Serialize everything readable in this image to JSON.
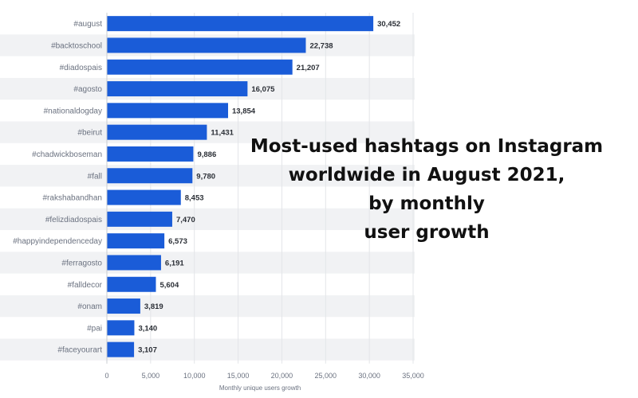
{
  "overlay_title": "Most-used hashtags on Instagram\nworldwide in August 2021,\nby monthly\nuser growth",
  "colors": {
    "bar": "#1a5cd8",
    "stripe": "#f1f2f4",
    "grid": "#e3e5e8"
  },
  "chart_data": {
    "type": "bar",
    "orientation": "horizontal",
    "categories": [
      "#august",
      "#backtoschool",
      "#diadospais",
      "#agosto",
      "#nationaldogday",
      "#beirut",
      "#chadwickboseman",
      "#fall",
      "#rakshabandhan",
      "#felizdiadospais",
      "#happyindependenceday",
      "#ferragosto",
      "#falldecor",
      "#onam",
      "#pai",
      "#faceyourart"
    ],
    "values": [
      30452,
      22738,
      21207,
      16075,
      13854,
      11431,
      9886,
      9780,
      8453,
      7470,
      6573,
      6191,
      5604,
      3819,
      3140,
      3107
    ],
    "value_labels": [
      "30,452",
      "22,738",
      "21,207",
      "16,075",
      "13,854",
      "11,431",
      "9,886",
      "9,780",
      "8,453",
      "7,470",
      "6,573",
      "6,191",
      "5,604",
      "3,819",
      "3,140",
      "3,107"
    ],
    "xlabel": "Monthly unique users growth",
    "xlim": [
      0,
      35000
    ],
    "xticks": [
      0,
      5000,
      10000,
      15000,
      20000,
      25000,
      30000,
      35000
    ],
    "xtick_labels": [
      "0",
      "5,000",
      "10,000",
      "15,000",
      "20,000",
      "25,000",
      "30,000",
      "35,000"
    ],
    "grid": true
  }
}
